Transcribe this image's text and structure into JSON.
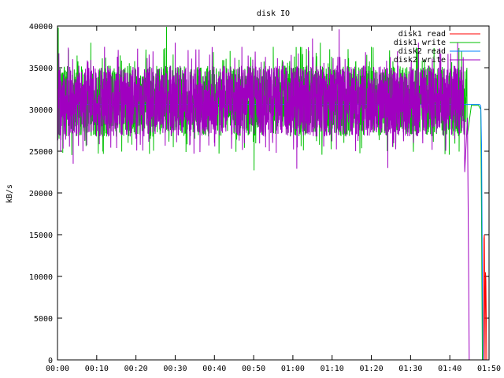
{
  "chart_data": {
    "type": "line",
    "title": "disk IO",
    "xlabel": "",
    "ylabel": "kB/s",
    "x_range": [
      "00:00",
      "01:50"
    ],
    "xlim_minutes": [
      0,
      110
    ],
    "ylim": [
      0,
      40000
    ],
    "x_ticks": [
      "00:00",
      "00:10",
      "00:20",
      "00:30",
      "00:40",
      "00:50",
      "01:00",
      "01:10",
      "01:20",
      "01:30",
      "01:40",
      "01:50"
    ],
    "y_ticks": [
      "0",
      "5000",
      "10000",
      "15000",
      "20000",
      "25000",
      "30000",
      "35000",
      "40000"
    ],
    "grid": false,
    "legend_position": "top-right",
    "series": [
      {
        "name": "disk1 read",
        "color": "#ff0000",
        "points": [
          [
            0,
            0
          ],
          [
            108.6,
            0
          ],
          [
            108.7,
            14500
          ],
          [
            108.8,
            15000
          ],
          [
            108.9,
            7000
          ],
          [
            109.0,
            0
          ],
          [
            109.1,
            10500
          ],
          [
            109.2,
            9500
          ],
          [
            109.4,
            0
          ],
          [
            110,
            0
          ]
        ]
      },
      {
        "name": "disk1 write",
        "color": "#00c000",
        "typical_range": [
          26000,
          36000
        ],
        "min_observed": 22700,
        "max_observed": 39900,
        "points": [
          [
            0,
            30000
          ],
          [
            0.2,
            39800
          ],
          [
            0.4,
            26500
          ],
          [
            8.5,
            38000
          ],
          [
            18.0,
            26000
          ],
          [
            27.8,
            39900
          ],
          [
            35.0,
            26500
          ],
          [
            44.0,
            37000
          ],
          [
            50.1,
            22700
          ],
          [
            55.0,
            37500
          ],
          [
            62.0,
            27000
          ],
          [
            67.0,
            38000
          ],
          [
            73.0,
            26000
          ],
          [
            80.0,
            37500
          ],
          [
            85.5,
            25500
          ],
          [
            92.0,
            37000
          ],
          [
            98.0,
            27500
          ],
          [
            103.0,
            37000
          ],
          [
            104.5,
            27000
          ],
          [
            105.5,
            30500
          ],
          [
            107.3,
            30500
          ],
          [
            107.9,
            30000
          ],
          [
            108.1,
            16000
          ],
          [
            108.3,
            0
          ]
        ]
      },
      {
        "name": "disk2 read",
        "color": "#0080ff",
        "baseline": 30600,
        "points": [
          [
            0,
            31500
          ],
          [
            2,
            30600
          ],
          [
            50,
            30600
          ],
          [
            100,
            30600
          ],
          [
            107.6,
            30600
          ],
          [
            107.9,
            30400
          ],
          [
            108.1,
            25500
          ],
          [
            108.3,
            10000
          ],
          [
            108.5,
            0
          ]
        ]
      },
      {
        "name": "disk2 write",
        "color": "#a000c0",
        "typical_range": [
          26000,
          36000
        ],
        "min_observed": 22500,
        "max_observed": 39600,
        "points": [
          [
            0,
            31000
          ],
          [
            0.8,
            25000
          ],
          [
            4.0,
            23500
          ],
          [
            12.0,
            37500
          ],
          [
            20.0,
            26500
          ],
          [
            30.0,
            38000
          ],
          [
            40.0,
            26000
          ],
          [
            47.0,
            37500
          ],
          [
            54.0,
            25000
          ],
          [
            61.0,
            22900
          ],
          [
            65.0,
            38500
          ],
          [
            71.8,
            39600
          ],
          [
            76.0,
            25000
          ],
          [
            84.2,
            23000
          ],
          [
            92.0,
            38000
          ],
          [
            99.0,
            26000
          ],
          [
            102.0,
            38000
          ],
          [
            103.8,
            22500
          ],
          [
            104.5,
            29000
          ],
          [
            104.8,
            10500
          ],
          [
            104.95,
            0
          ]
        ]
      }
    ]
  }
}
